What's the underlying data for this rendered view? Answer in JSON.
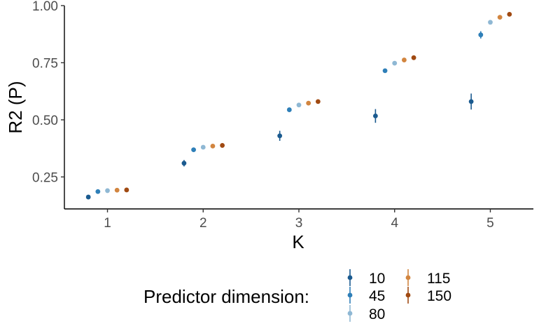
{
  "chart_data": {
    "type": "scatter",
    "title": "",
    "xlabel": "K",
    "ylabel": "R2 (P)",
    "x_categories": [
      "1",
      "2",
      "3",
      "4",
      "5"
    ],
    "x_range": [
      0.55,
      5.45
    ],
    "ylim": [
      0.11,
      1.0
    ],
    "y_ticks": [
      0.25,
      0.5,
      0.75,
      1.0
    ],
    "y_tick_labels": [
      "0.25",
      "0.50",
      "0.75",
      "1.00"
    ],
    "grid": false,
    "legend_position": "bottom",
    "legend": {
      "title": "Predictor dimension:",
      "entries": [
        "10",
        "45",
        "80",
        "115",
        "150"
      ]
    },
    "series": [
      {
        "name": "10",
        "color": "#1a5a8f",
        "dodge": -0.2,
        "points": [
          {
            "k": 1,
            "y": 0.162,
            "err": 0.006
          },
          {
            "k": 2,
            "y": 0.31,
            "err": 0.014
          },
          {
            "k": 3,
            "y": 0.43,
            "err": 0.022
          },
          {
            "k": 4,
            "y": 0.517,
            "err": 0.03
          },
          {
            "k": 5,
            "y": 0.58,
            "err": 0.035
          }
        ]
      },
      {
        "name": "45",
        "color": "#2e7fb8",
        "dodge": -0.1,
        "points": [
          {
            "k": 1,
            "y": 0.186,
            "err": 0.003
          },
          {
            "k": 2,
            "y": 0.369,
            "err": 0.005
          },
          {
            "k": 3,
            "y": 0.544,
            "err": 0.006
          },
          {
            "k": 4,
            "y": 0.715,
            "err": 0.007
          },
          {
            "k": 5,
            "y": 0.872,
            "err": 0.016
          }
        ]
      },
      {
        "name": "80",
        "color": "#8fb8d4",
        "dodge": 0.0,
        "points": [
          {
            "k": 1,
            "y": 0.19,
            "err": 0.002
          },
          {
            "k": 2,
            "y": 0.38,
            "err": 0.003
          },
          {
            "k": 3,
            "y": 0.565,
            "err": 0.003
          },
          {
            "k": 4,
            "y": 0.748,
            "err": 0.004
          },
          {
            "k": 5,
            "y": 0.927,
            "err": 0.005
          }
        ]
      },
      {
        "name": "115",
        "color": "#d2853f",
        "dodge": 0.1,
        "points": [
          {
            "k": 1,
            "y": 0.192,
            "err": 0.002
          },
          {
            "k": 2,
            "y": 0.385,
            "err": 0.002
          },
          {
            "k": 3,
            "y": 0.573,
            "err": 0.003
          },
          {
            "k": 4,
            "y": 0.762,
            "err": 0.003
          },
          {
            "k": 5,
            "y": 0.949,
            "err": 0.003
          }
        ]
      },
      {
        "name": "150",
        "color": "#a04a12",
        "dodge": 0.2,
        "points": [
          {
            "k": 1,
            "y": 0.193,
            "err": 0.002
          },
          {
            "k": 2,
            "y": 0.388,
            "err": 0.002
          },
          {
            "k": 3,
            "y": 0.58,
            "err": 0.002
          },
          {
            "k": 4,
            "y": 0.772,
            "err": 0.003
          },
          {
            "k": 5,
            "y": 0.962,
            "err": 0.003
          }
        ]
      }
    ]
  }
}
